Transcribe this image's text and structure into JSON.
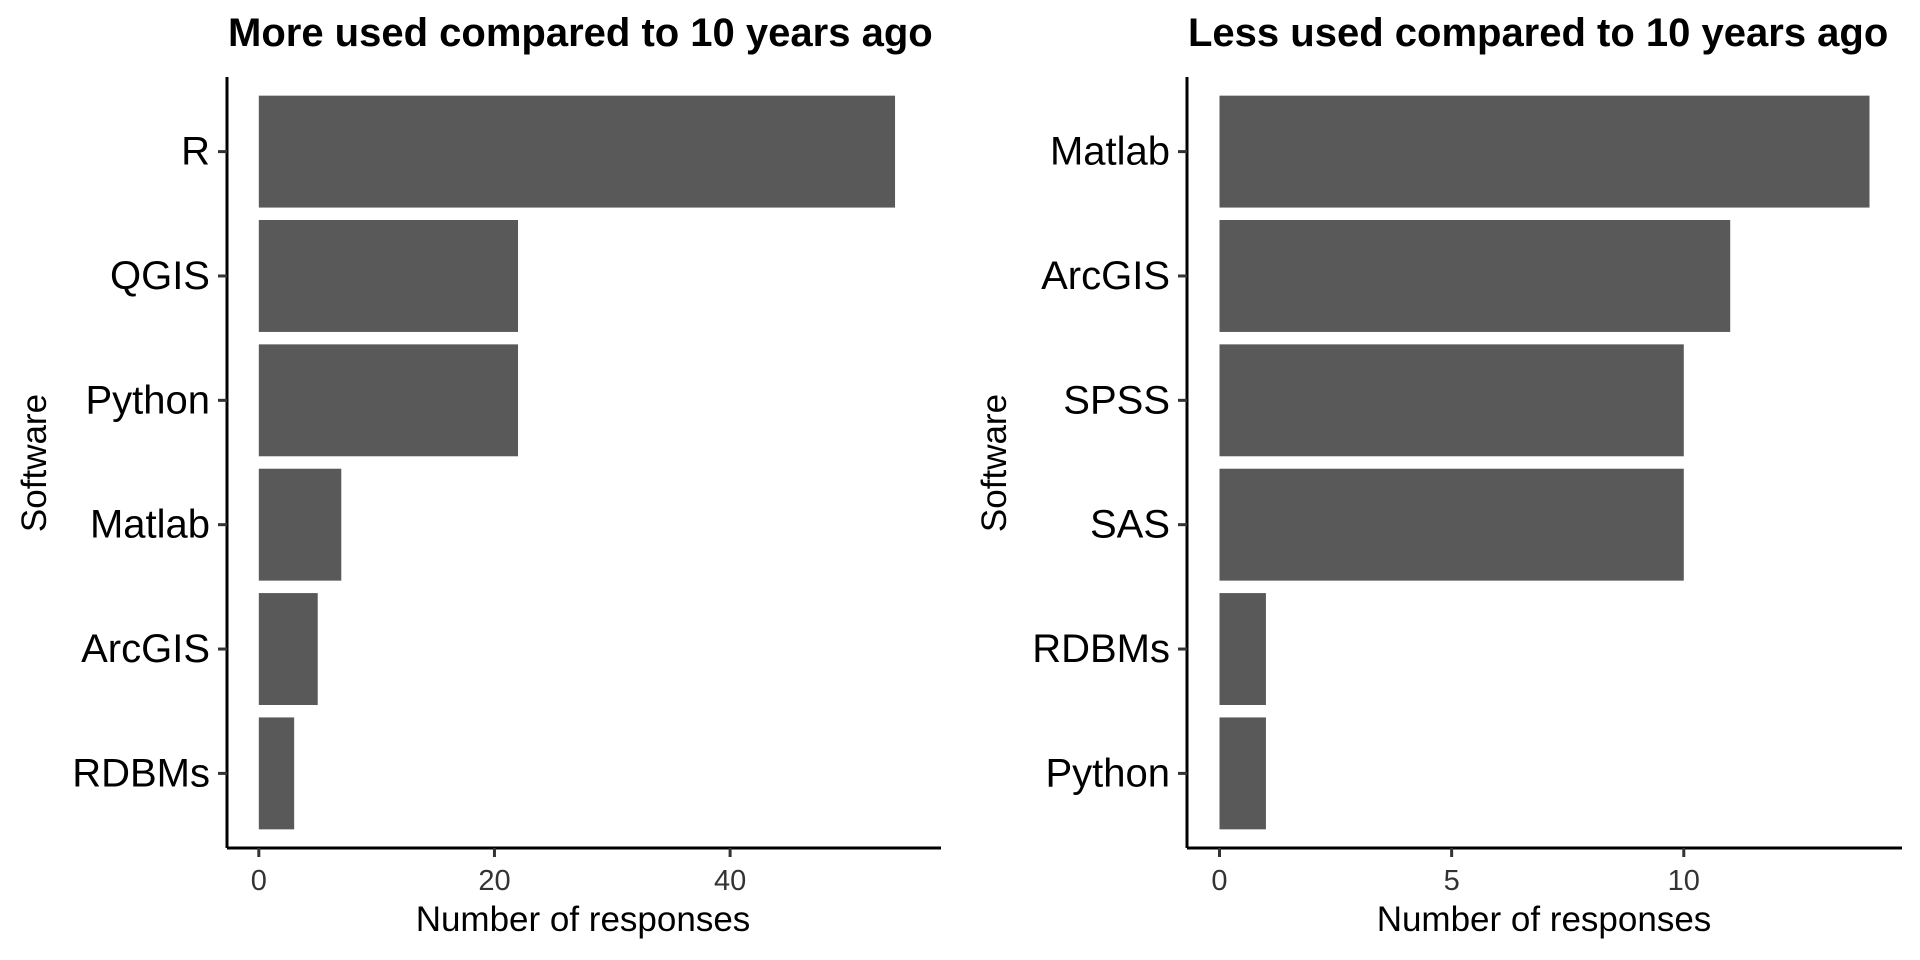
{
  "chart_data": [
    {
      "type": "bar",
      "orientation": "horizontal",
      "title": "More used compared to 10 years ago",
      "xlabel": "Number of responses",
      "ylabel": "Software",
      "categories": [
        "R",
        "QGIS",
        "Python",
        "Matlab",
        "ArcGIS",
        "RDBMs"
      ],
      "values": [
        54,
        22,
        22,
        7,
        5,
        3
      ],
      "xlim": [
        -2.7,
        57.9
      ],
      "xticks": [
        0,
        20,
        40
      ],
      "xtick_labels": [
        "0",
        "20",
        "40"
      ],
      "grid": false,
      "bar_color": "#595959"
    },
    {
      "type": "bar",
      "orientation": "horizontal",
      "title": "Less used compared to 10 years ago",
      "xlabel": "Number of responses",
      "ylabel": "Software",
      "categories": [
        "Matlab",
        "ArcGIS",
        "SPSS",
        "SAS",
        "RDBMs",
        "Python"
      ],
      "values": [
        14,
        11,
        10,
        10,
        1,
        1
      ],
      "xlim": [
        -0.7,
        14.7
      ],
      "xticks": [
        0,
        5,
        10
      ],
      "xtick_labels": [
        "0",
        "5",
        "10"
      ],
      "grid": false,
      "bar_color": "#595959"
    }
  ]
}
